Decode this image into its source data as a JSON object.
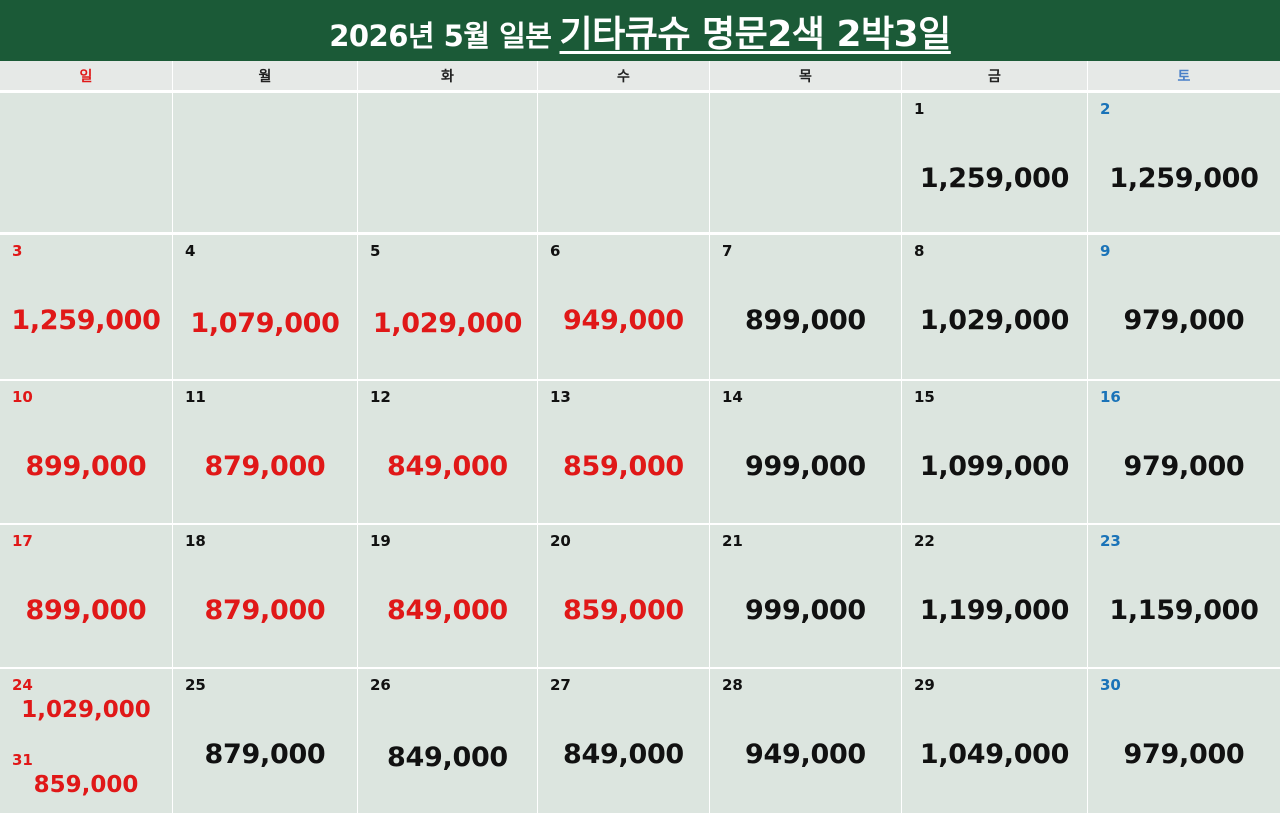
{
  "header": {
    "title_main": "2026년 5월 일본",
    "title_highlight": "기타큐슈 명문2색 2박3일"
  },
  "weekdays": [
    "일",
    "월",
    "화",
    "수",
    "목",
    "금",
    "토"
  ],
  "colors": {
    "header_bg": "#1b5a37",
    "cell_bg": "#dce5df",
    "sunday_red": "#e01818",
    "saturday_blue": "#1a73b8"
  },
  "weeks": [
    [
      {
        "day": "",
        "price": ""
      },
      {
        "day": "",
        "price": ""
      },
      {
        "day": "",
        "price": ""
      },
      {
        "day": "",
        "price": ""
      },
      {
        "day": "",
        "price": ""
      },
      {
        "day": "1",
        "price": "1,259,000"
      },
      {
        "day": "2",
        "price": "1,259,000"
      }
    ],
    [
      {
        "day": "3",
        "price": "1,259,000"
      },
      {
        "day": "4",
        "price": "1,079,000"
      },
      {
        "day": "5",
        "price": "1,029,000"
      },
      {
        "day": "6",
        "price": "949,000"
      },
      {
        "day": "7",
        "price": "899,000"
      },
      {
        "day": "8",
        "price": "1,029,000"
      },
      {
        "day": "9",
        "price": "979,000"
      }
    ],
    [
      {
        "day": "10",
        "price": "899,000"
      },
      {
        "day": "11",
        "price": "879,000"
      },
      {
        "day": "12",
        "price": "849,000"
      },
      {
        "day": "13",
        "price": "859,000"
      },
      {
        "day": "14",
        "price": "999,000"
      },
      {
        "day": "15",
        "price": "1,099,000"
      },
      {
        "day": "16",
        "price": "979,000"
      }
    ],
    [
      {
        "day": "17",
        "price": "899,000"
      },
      {
        "day": "18",
        "price": "879,000"
      },
      {
        "day": "19",
        "price": "849,000"
      },
      {
        "day": "20",
        "price": "859,000"
      },
      {
        "day": "21",
        "price": "999,000"
      },
      {
        "day": "22",
        "price": "1,199,000"
      },
      {
        "day": "23",
        "price": "1,159,000"
      }
    ],
    [
      {
        "day": "24",
        "price": "1,029,000",
        "day2": "31",
        "price2": "859,000"
      },
      {
        "day": "25",
        "price": "879,000"
      },
      {
        "day": "26",
        "price": "849,000"
      },
      {
        "day": "27",
        "price": "849,000"
      },
      {
        "day": "28",
        "price": "949,000"
      },
      {
        "day": "29",
        "price": "1,049,000"
      },
      {
        "day": "30",
        "price": "979,000"
      }
    ]
  ]
}
